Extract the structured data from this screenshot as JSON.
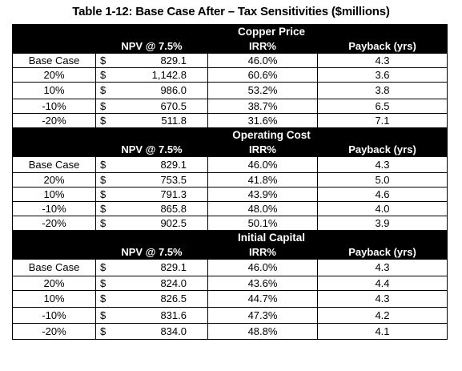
{
  "title": "Table 1-12: Base Case After – Tax Sensitivities ($millions)",
  "columns": {
    "npv": "NPV @ 7.5%",
    "irr": "IRR%",
    "payback": "Payback (yrs)"
  },
  "currency_symbol": "$",
  "sections": [
    {
      "name": "Copper Price",
      "rows": [
        {
          "label": "Base Case",
          "npv": "829.1",
          "irr": "46.0%",
          "payback": "4.3"
        },
        {
          "label": "20%",
          "npv": "1,142.8",
          "irr": "60.6%",
          "payback": "3.6"
        },
        {
          "label": "10%",
          "npv": "986.0",
          "irr": "53.2%",
          "payback": "3.8"
        },
        {
          "label": "-10%",
          "npv": "670.5",
          "irr": "38.7%",
          "payback": "6.5"
        },
        {
          "label": "-20%",
          "npv": "511.8",
          "irr": "31.6%",
          "payback": "7.1"
        }
      ]
    },
    {
      "name": "Operating Cost",
      "rows": [
        {
          "label": "Base Case",
          "npv": "829.1",
          "irr": "46.0%",
          "payback": "4.3"
        },
        {
          "label": "20%",
          "npv": "753.5",
          "irr": "41.8%",
          "payback": "5.0"
        },
        {
          "label": "10%",
          "npv": "791.3",
          "irr": "43.9%",
          "payback": "4.6"
        },
        {
          "label": "-10%",
          "npv": "865.8",
          "irr": "48.0%",
          "payback": "4.0"
        },
        {
          "label": "-20%",
          "npv": "902.5",
          "irr": "50.1%",
          "payback": "3.9"
        }
      ]
    },
    {
      "name": "Initial Capital",
      "rows": [
        {
          "label": "Base Case",
          "npv": "829.1",
          "irr": "46.0%",
          "payback": "4.3"
        },
        {
          "label": "20%",
          "npv": "824.0",
          "irr": "43.6%",
          "payback": "4.4"
        },
        {
          "label": "10%",
          "npv": "826.5",
          "irr": "44.7%",
          "payback": "4.3"
        },
        {
          "label": "-10%",
          "npv": "831.6",
          "irr": "47.3%",
          "payback": "4.2"
        },
        {
          "label": "-20%",
          "npv": "834.0",
          "irr": "48.8%",
          "payback": "4.1"
        }
      ]
    }
  ]
}
